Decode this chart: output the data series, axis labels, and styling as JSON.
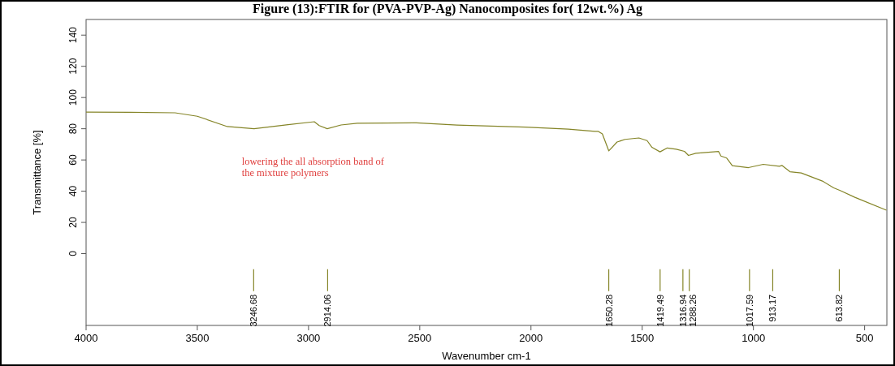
{
  "chart_data": {
    "type": "line",
    "title": "Figure (13):FTIR for (PVA-PVP-Ag) Nanocomposites for( 12wt.%) Ag",
    "xlabel": "Wavenumber cm-1",
    "ylabel": "Transmittance [%]",
    "xlim": [
      4000,
      400
    ],
    "ylim": [
      -46,
      150
    ],
    "xticks": [
      4000,
      3500,
      3000,
      2500,
      2000,
      1500,
      1000,
      500
    ],
    "yticks": [
      0,
      20,
      40,
      60,
      80,
      100,
      120,
      140
    ],
    "grid": false,
    "line_style": "solid",
    "marker": "none",
    "series": [
      {
        "color": "#858528",
        "x": [
          4000,
          3800,
          3600,
          3500,
          3365,
          3245,
          3100,
          2974,
          2952,
          2916,
          2854,
          2781,
          2515,
          2332,
          2026,
          1832,
          1712,
          1697,
          1679,
          1650,
          1613,
          1577,
          1515,
          1478,
          1456,
          1420,
          1387,
          1347,
          1310,
          1292,
          1259,
          1157,
          1146,
          1120,
          1095,
          1022,
          956,
          883,
          872,
          836,
          785,
          690,
          639,
          610,
          544,
          402
        ],
        "values": [
          90.7,
          90.5,
          90.2,
          88,
          81.4,
          80,
          82.5,
          84.5,
          82,
          80,
          82.4,
          83.5,
          83.8,
          82.4,
          81,
          79.7,
          78.3,
          78.3,
          76.7,
          65.8,
          71.5,
          73.2,
          74.1,
          72.4,
          68.1,
          65.2,
          67.7,
          66.9,
          65.5,
          62.9,
          64.3,
          65.5,
          62.5,
          61.2,
          56.4,
          55.1,
          57.2,
          56,
          56.5,
          52.5,
          51.7,
          46.5,
          42.1,
          40.4,
          36.1,
          27.8
        ]
      }
    ],
    "ref_lines": [
      {
        "axis": "x",
        "value": 3246.68,
        "label": "3246.68"
      },
      {
        "axis": "x",
        "value": 2914.06,
        "label": "2914.06"
      },
      {
        "axis": "x",
        "value": 1650.28,
        "label": "1650.28"
      },
      {
        "axis": "x",
        "value": 1419.49,
        "label": "1419.49"
      },
      {
        "axis": "x",
        "value": 1316.94,
        "label": "1316.94"
      },
      {
        "axis": "x",
        "value": 1288.26,
        "label": "1288.26"
      },
      {
        "axis": "x",
        "value": 1017.59,
        "label": "1017.59"
      },
      {
        "axis": "x",
        "value": 913.17,
        "label": "913.17"
      },
      {
        "axis": "x",
        "value": 613.82,
        "label": "613.82"
      }
    ],
    "annotations": [
      "lowering the all absorption band of the mixture polymers"
    ]
  }
}
